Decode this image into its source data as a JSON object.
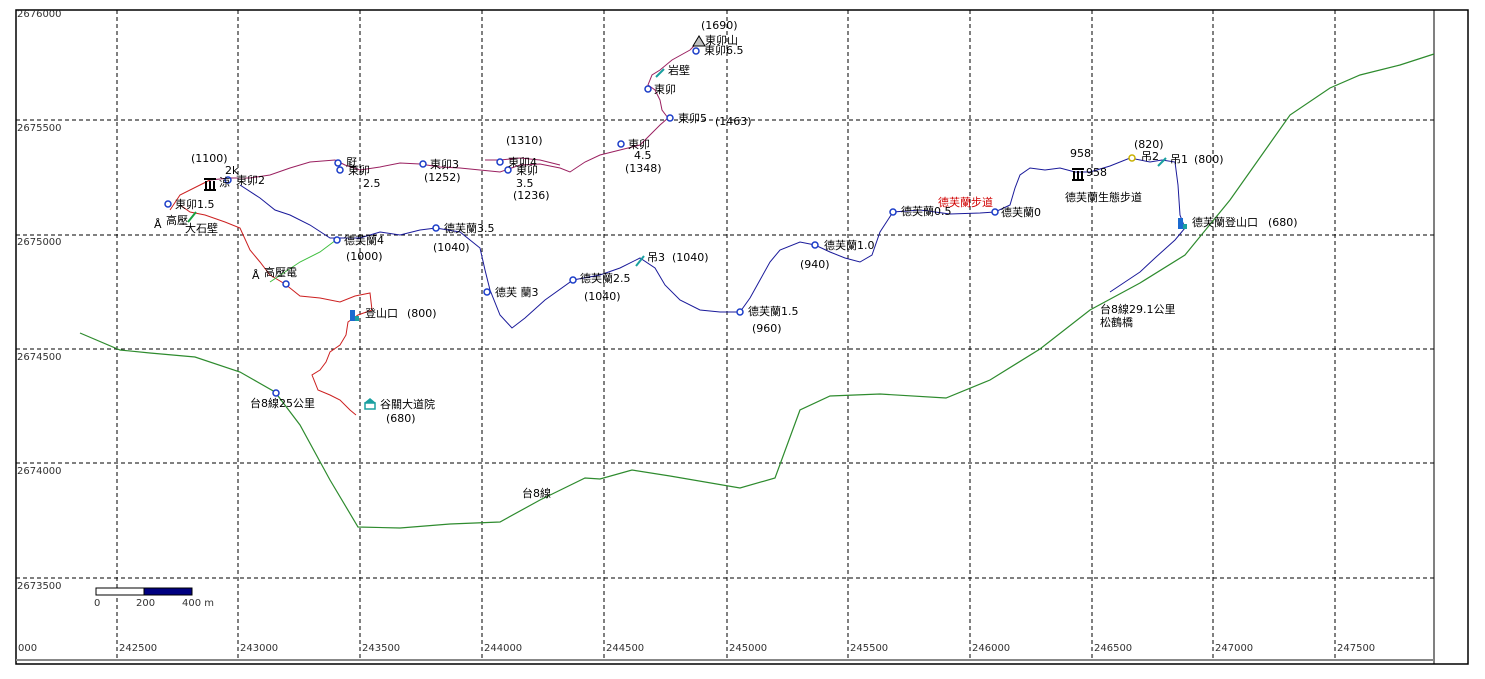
{
  "axes": {
    "x_ticks": [
      "000",
      "242500",
      "243000",
      "243500",
      "244000",
      "244500",
      "245000",
      "245500",
      "246000",
      "246500",
      "247000",
      "247500"
    ],
    "y_ticks": [
      "2676000",
      "2675500",
      "2675000",
      "2674500",
      "2674000",
      "2673500"
    ]
  },
  "scale_bar": {
    "l0": "0",
    "l1": "200",
    "l2": "400 m"
  },
  "colors": {
    "highway": "#2e8b2e",
    "trail_blue": "#1a1a9a",
    "trail_red": "#cc2020",
    "trail_purple": "#9a2060",
    "node": "#1a3cc8"
  },
  "labels": {
    "peak_elev": "(1690)",
    "peak_name": "東卯山",
    "d65": "東卯6.5",
    "rock": "岩壁",
    "d6": "東卯",
    "d5": "東卯5",
    "d5_elev": "(1463)",
    "d45": "東卯",
    "d45_num": "4.5",
    "d45_elev": "(1348)",
    "d4_elev": "(1310)",
    "d4": "東卯4",
    "d35": "東卯",
    "d35_num": "3.5",
    "d35_elev": "(1236)",
    "d3": "東卯3",
    "d3_elev": "(1252)",
    "wu": "屘",
    "d25": "東卯",
    "d25_num": "2.5",
    "d2_elev": "(1100)",
    "d2_2k": "2k",
    "d2_name": "東卯2",
    "d2_prefix": "涼",
    "d15": "東卯1.5",
    "gaoya": "高壓",
    "big_rock": "大石壁",
    "gaoya_tower": "高壓電",
    "trailhead": "登山口",
    "trailhead_elev": "(800)",
    "taroko": "谷關大道院",
    "taroko_elev": "(680)",
    "t8_25": "台8線25公里",
    "t8": "台8線",
    "df4": "德芙蘭4",
    "df4_elev": "(1000)",
    "df35": "德芙蘭3.5",
    "df35_elev": "(1040)",
    "df3": "德芙 蘭3",
    "df25": "德芙蘭2.5",
    "df25_elev": "(1040)",
    "diao3": "吊3",
    "diao3_elev": "(1040)",
    "df15": "德芙蘭1.5",
    "df15_elev": "(960)",
    "df10": "德芙蘭1.0",
    "df10_elev": "(940)",
    "df05": "德芙蘭0.5",
    "df_trail": "德芙蘭步道",
    "df0": "德芙蘭0",
    "elev958": "958",
    "elev958b": "958",
    "eco_trail": "德芙蘭生態步道",
    "elev820": "(820)",
    "diao2": "吊2",
    "diao1": "吊1",
    "diao1_elev": "(800)",
    "df_trailhead": "德芙蘭登山口",
    "df_trailhead_elev": "(680)",
    "t8_291": "台8線29.1公里",
    "songhe": "松鶴橋"
  }
}
